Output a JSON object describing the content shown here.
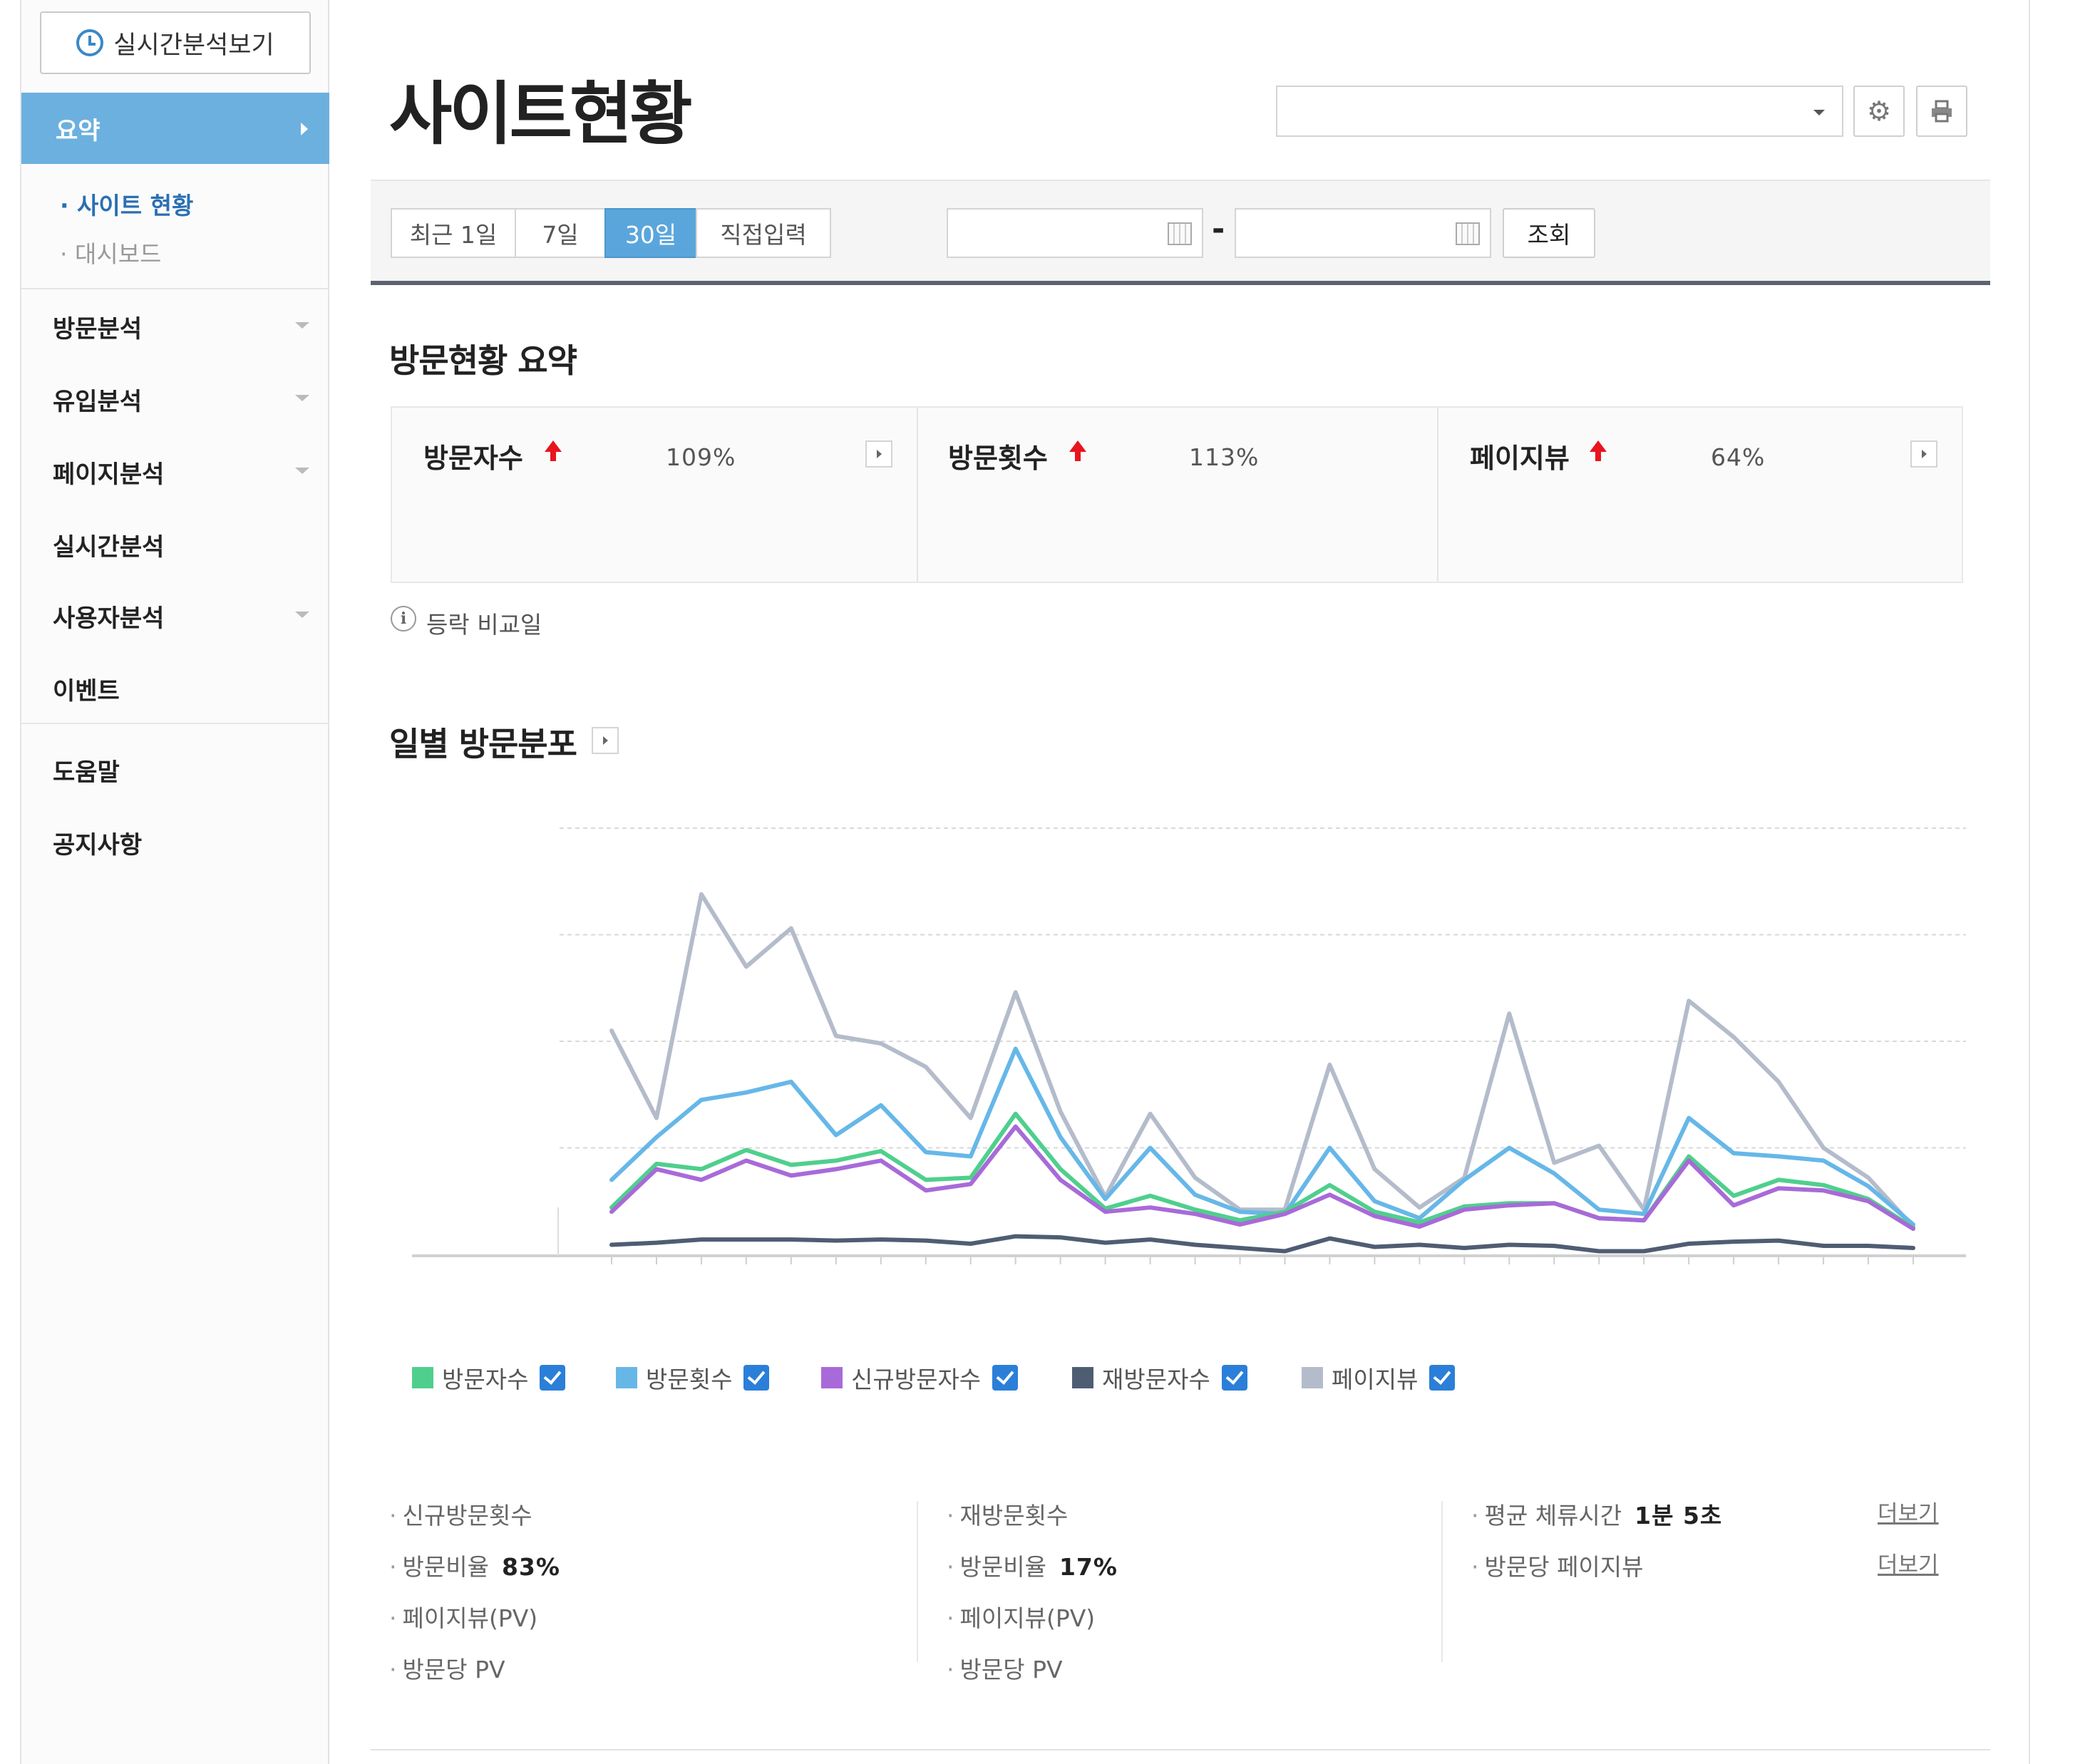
{
  "sidebar": {
    "realtime_button": "실시간분석보기",
    "active_item": "요약",
    "sub_items": [
      "· 사이트 현황",
      "· 대시보드"
    ],
    "items": [
      "방문분석",
      "유입분석",
      "페이지분석",
      "실시간분석",
      "사용자분석",
      "이벤트"
    ],
    "bottom_items": [
      "도움말",
      "공지사항"
    ]
  },
  "header": {
    "title": "사이트현황",
    "site_select_value": ""
  },
  "filter": {
    "periods": [
      "최근 1일",
      "7일",
      "30일",
      "직접입력"
    ],
    "active_period": "30일",
    "start_date": "",
    "end_date": "",
    "separator": "-",
    "query_label": "조회"
  },
  "summary": {
    "title": "방문현황 요약",
    "cards": [
      {
        "label": "방문자수",
        "pct": "109%"
      },
      {
        "label": "방문횟수",
        "pct": "113%"
      },
      {
        "label": "페이지뷰",
        "pct": "64%"
      }
    ],
    "info_icon_glyph": "i",
    "info_text": "등락 비교일"
  },
  "daily": {
    "title": "일별 방문분포"
  },
  "chart_data": {
    "type": "line",
    "x": [
      1,
      2,
      3,
      4,
      5,
      6,
      7,
      8,
      9,
      10,
      11,
      12,
      13,
      14,
      15,
      16,
      17,
      18,
      19,
      20,
      21,
      22,
      23,
      24,
      25,
      26,
      27,
      28,
      29,
      30
    ],
    "ylim": [
      0,
      400
    ],
    "grid": true,
    "legend_position": "bottom",
    "series": [
      {
        "name": "방문자수",
        "color": "#4fcf8d",
        "values": [
          44,
          85,
          80,
          98,
          84,
          88,
          97,
          70,
          72,
          132,
          80,
          43,
          55,
          42,
          32,
          40,
          65,
          40,
          30,
          45,
          48,
          48,
          34,
          32,
          92,
          55,
          70,
          65,
          52,
          25
        ]
      },
      {
        "name": "방문횟수",
        "color": "#66b7e8",
        "values": [
          70,
          110,
          145,
          152,
          162,
          112,
          140,
          96,
          92,
          193,
          110,
          52,
          100,
          56,
          40,
          38,
          100,
          50,
          34,
          70,
          100,
          76,
          42,
          38,
          128,
          95,
          92,
          88,
          64,
          28
        ]
      },
      {
        "name": "신규방문자수",
        "color": "#a86ad8",
        "values": [
          40,
          80,
          70,
          88,
          74,
          80,
          88,
          60,
          66,
          120,
          70,
          40,
          44,
          38,
          28,
          38,
          56,
          36,
          26,
          42,
          46,
          48,
          34,
          32,
          88,
          46,
          62,
          60,
          50,
          24
        ]
      },
      {
        "name": "재방문자수",
        "color": "#4f5d73",
        "values": [
          9,
          11,
          14,
          14,
          14,
          13,
          14,
          13,
          10,
          17,
          16,
          11,
          14,
          9,
          6,
          3,
          15,
          7,
          9,
          6,
          9,
          8,
          3,
          3,
          10,
          12,
          13,
          8,
          8,
          6
        ]
      },
      {
        "name": "페이지뷰",
        "color": "#b4bccb",
        "values": [
          210,
          128,
          338,
          270,
          306,
          205,
          198,
          176,
          128,
          246,
          134,
          54,
          132,
          72,
          42,
          42,
          178,
          80,
          44,
          72,
          226,
          86,
          102,
          42,
          238,
          204,
          162,
          100,
          72,
          26
        ]
      }
    ]
  },
  "stats": {
    "new": {
      "title": "신규방문횟수",
      "ratio_label": "방문비율",
      "ratio_value": "83%",
      "pv_label": "페이지뷰(PV)",
      "per_label": "방문당 PV"
    },
    "return": {
      "title": "재방문횟수",
      "ratio_label": "방문비율",
      "ratio_value": "17%",
      "pv_label": "페이지뷰(PV)",
      "per_label": "방문당 PV"
    },
    "avg": {
      "stay_label": "평균 체류시간",
      "stay_value": "1분 5초",
      "pv_label": "방문당 페이지뷰",
      "more": "더보기"
    }
  },
  "colors": {
    "accent": "#5aa6dc",
    "up": "#e8141e",
    "checkbox": "#2b7fd8"
  }
}
